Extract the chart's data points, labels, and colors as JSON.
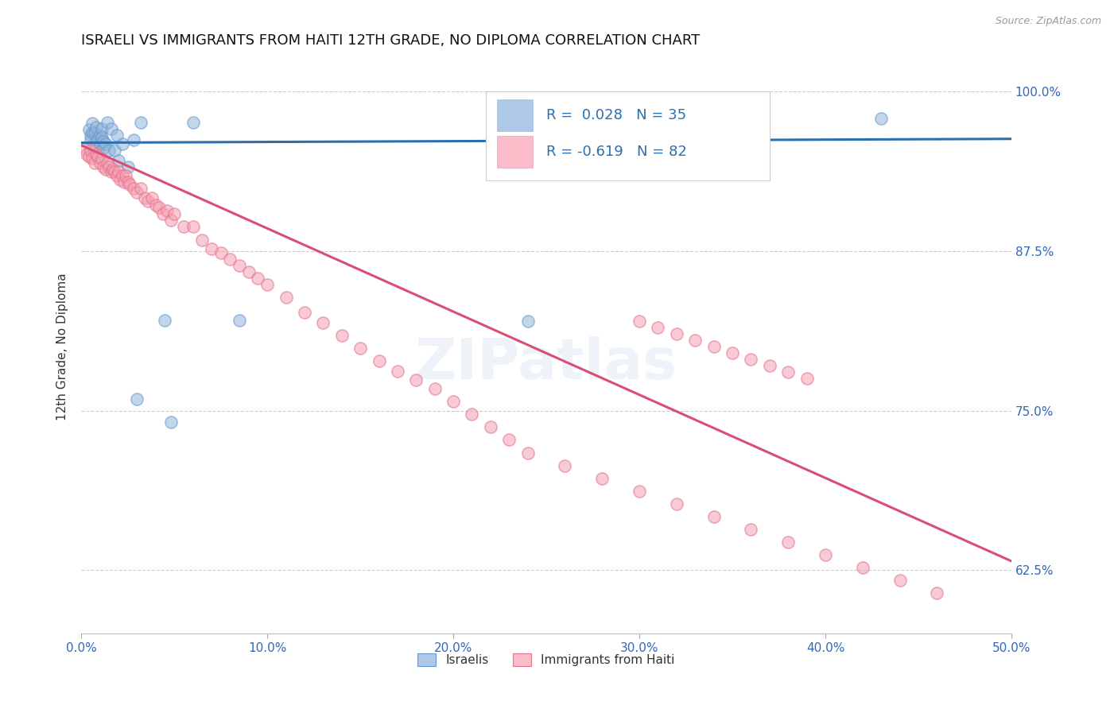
{
  "title": "ISRAELI VS IMMIGRANTS FROM HAITI 12TH GRADE, NO DIPLOMA CORRELATION CHART",
  "source": "Source: ZipAtlas.com",
  "ylabel": "12th Grade, No Diploma",
  "xmin": 0.0,
  "xmax": 0.5,
  "ymin": 0.575,
  "ymax": 1.025,
  "yticks": [
    0.625,
    0.75,
    0.875,
    1.0
  ],
  "ytick_labels": [
    "62.5%",
    "75.0%",
    "87.5%",
    "100.0%"
  ],
  "xticks": [
    0.0,
    0.1,
    0.2,
    0.3,
    0.4,
    0.5
  ],
  "xtick_labels": [
    "0.0%",
    "10.0%",
    "20.0%",
    "30.0%",
    "40.0%",
    "50.0%"
  ],
  "legend_text_blue": "R =  0.028   N = 35",
  "legend_text_pink": "R = -0.619   N = 82",
  "blue_color": "#92b4d8",
  "pink_color": "#f4a0b0",
  "blue_edge_color": "#6699cc",
  "pink_edge_color": "#e87090",
  "blue_line_color": "#2c6fad",
  "pink_line_color": "#d94f74",
  "blue_legend_color": "#adc8e8",
  "pink_legend_color": "#f9bcc8",
  "legend_text_color": "#2c6fad",
  "watermark": "ZIPatlas",
  "blue_scatter_x": [
    0.004,
    0.005,
    0.005,
    0.006,
    0.006,
    0.007,
    0.007,
    0.008,
    0.008,
    0.009,
    0.01,
    0.01,
    0.011,
    0.011,
    0.012,
    0.012,
    0.013,
    0.014,
    0.015,
    0.016,
    0.018,
    0.019,
    0.02,
    0.022,
    0.025,
    0.028,
    0.03,
    0.032,
    0.045,
    0.048,
    0.06,
    0.085,
    0.24,
    0.36,
    0.43
  ],
  "blue_scatter_y": [
    0.97,
    0.966,
    0.962,
    0.975,
    0.968,
    0.968,
    0.956,
    0.972,
    0.961,
    0.963,
    0.966,
    0.959,
    0.971,
    0.964,
    0.956,
    0.961,
    0.959,
    0.976,
    0.954,
    0.971,
    0.954,
    0.966,
    0.946,
    0.959,
    0.941,
    0.962,
    0.759,
    0.976,
    0.821,
    0.741,
    0.976,
    0.821,
    0.82,
    0.981,
    0.979
  ],
  "pink_scatter_x": [
    0.002,
    0.003,
    0.004,
    0.005,
    0.006,
    0.007,
    0.008,
    0.009,
    0.01,
    0.011,
    0.012,
    0.013,
    0.014,
    0.015,
    0.016,
    0.017,
    0.018,
    0.019,
    0.02,
    0.021,
    0.022,
    0.023,
    0.024,
    0.025,
    0.026,
    0.028,
    0.03,
    0.032,
    0.034,
    0.036,
    0.038,
    0.04,
    0.042,
    0.044,
    0.046,
    0.048,
    0.05,
    0.055,
    0.06,
    0.065,
    0.07,
    0.075,
    0.08,
    0.085,
    0.09,
    0.095,
    0.1,
    0.11,
    0.12,
    0.13,
    0.14,
    0.15,
    0.16,
    0.17,
    0.18,
    0.19,
    0.2,
    0.21,
    0.22,
    0.23,
    0.24,
    0.26,
    0.28,
    0.3,
    0.32,
    0.34,
    0.36,
    0.38,
    0.4,
    0.42,
    0.44,
    0.46,
    0.3,
    0.31,
    0.32,
    0.33,
    0.34,
    0.35,
    0.36,
    0.37,
    0.38,
    0.39
  ],
  "pink_scatter_y": [
    0.955,
    0.951,
    0.949,
    0.954,
    0.948,
    0.944,
    0.951,
    0.949,
    0.944,
    0.947,
    0.941,
    0.939,
    0.944,
    0.941,
    0.937,
    0.939,
    0.937,
    0.934,
    0.937,
    0.931,
    0.934,
    0.929,
    0.934,
    0.929,
    0.927,
    0.924,
    0.921,
    0.924,
    0.917,
    0.914,
    0.917,
    0.911,
    0.909,
    0.904,
    0.907,
    0.899,
    0.904,
    0.894,
    0.894,
    0.884,
    0.877,
    0.874,
    0.869,
    0.864,
    0.859,
    0.854,
    0.849,
    0.839,
    0.827,
    0.819,
    0.809,
    0.799,
    0.789,
    0.781,
    0.774,
    0.767,
    0.757,
    0.747,
    0.737,
    0.727,
    0.717,
    0.707,
    0.697,
    0.687,
    0.677,
    0.667,
    0.657,
    0.647,
    0.637,
    0.627,
    0.617,
    0.607,
    0.82,
    0.815,
    0.81,
    0.805,
    0.8,
    0.795,
    0.79,
    0.785,
    0.78,
    0.775
  ],
  "blue_line_x": [
    0.0,
    0.5
  ],
  "blue_line_y": [
    0.96,
    0.963
  ],
  "pink_line_x": [
    0.0,
    0.5
  ],
  "pink_line_y": [
    0.958,
    0.632
  ],
  "background_color": "#ffffff",
  "grid_color": "#cccccc",
  "marker_size": 120,
  "title_color": "#111111",
  "axis_label_color": "#333333",
  "tick_color": "#3366bb"
}
